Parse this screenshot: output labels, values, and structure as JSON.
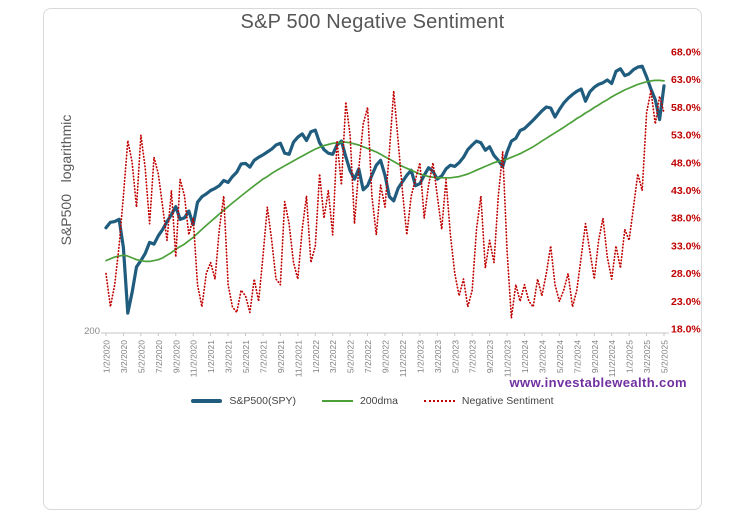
{
  "watermark": {
    "text": "www.investablewealth.com",
    "color": "#7030A0"
  },
  "chart_data": {
    "type": "line",
    "title": "S&P 500 Negative Sentiment",
    "sampling": "semi-monthly estimates, Jan 2020 - May 2025",
    "grid": "off",
    "left_axis": {
      "label": "S&P500   logarithmic",
      "scale": "logarithmic",
      "tick_labels": [
        "200"
      ],
      "color": "#8a8a8a"
    },
    "right_axis": {
      "tick_labels": [
        "68.0%",
        "63.0%",
        "58.0%",
        "53.0%",
        "48.0%",
        "43.0%",
        "38.0%",
        "33.0%",
        "28.0%",
        "23.0%",
        "18.0%"
      ],
      "min": 18,
      "max": 68,
      "step": 5,
      "color": "#C00000"
    },
    "x_axis": {
      "tick_labels": [
        "1/2/2020",
        "3/2/2020",
        "5/2/2020",
        "7/2/2020",
        "9/2/2020",
        "11/2/2020",
        "1/2/2021",
        "3/2/2021",
        "5/2/2021",
        "7/2/2021",
        "9/2/2021",
        "11/2/2021",
        "1/2/2022",
        "3/2/2022",
        "5/2/2022",
        "7/2/2022",
        "9/2/2022",
        "11/2/2022",
        "1/2/2023",
        "3/2/2023",
        "5/2/2023",
        "7/2/2023",
        "9/2/2023",
        "11/2/2023",
        "1/2/2024",
        "3/2/2024",
        "5/2/2024",
        "7/2/2024",
        "9/2/2024",
        "11/2/2024",
        "1/2/2025",
        "3/2/2025",
        "5/2/2025"
      ],
      "color": "#7F7F7F"
    },
    "legend": {
      "position": "bottom",
      "entries": [
        "S&P500(SPY)",
        "200dma",
        "Negative Sentiment"
      ]
    },
    "series": [
      {
        "name": "S&P500(SPY)",
        "axis": "left",
        "style": "solid",
        "color": "#1F5C7E",
        "values": [
          324,
          331,
          332,
          335,
          300,
          232,
          252,
          278,
          285,
          293,
          306,
          304,
          314,
          322,
          332,
          341,
          352,
          335,
          337,
          346,
          328,
          358,
          366,
          370,
          375,
          378,
          382,
          390,
          387,
          396,
          403,
          416,
          417,
          411,
          422,
          427,
          431,
          436,
          441,
          448,
          451,
          434,
          432,
          453,
          462,
          468,
          456,
          472,
          475,
          452,
          440,
          434,
          432,
          448,
          455,
          428,
          405,
          392,
          408,
          376,
          382,
          398,
          414,
          422,
          398,
          366,
          360,
          378,
          388,
          398,
          406,
          382,
          385,
          398,
          410,
          404,
          392,
          397,
          408,
          414,
          412,
          418,
          427,
          440,
          448,
          455,
          452,
          439,
          445,
          430,
          422,
          412,
          436,
          455,
          460,
          474,
          478,
          486,
          494,
          503,
          512,
          520,
          518,
          500,
          515,
          528,
          538,
          546,
          553,
          558,
          532,
          552,
          562,
          568,
          572,
          578,
          570,
          598,
          604,
          588,
          592,
          602,
          608,
          610,
          585,
          558,
          535,
          495,
          565
        ]
      },
      {
        "name": "200dma",
        "axis": "left",
        "style": "solid",
        "color": "#4CA03A",
        "values": [
          285,
          287,
          289,
          290,
          291,
          290,
          288,
          286,
          285,
          284,
          284,
          285,
          286,
          288,
          291,
          294,
          298,
          301,
          304,
          308,
          312,
          317,
          322,
          327,
          332,
          337,
          342,
          347,
          352,
          357,
          362,
          367,
          372,
          377,
          382,
          387,
          392,
          396,
          401,
          405,
          409,
          413,
          417,
          421,
          425,
          429,
          433,
          437,
          441,
          444,
          447,
          449,
          451,
          452,
          453,
          453,
          452,
          450,
          448,
          445,
          442,
          439,
          436,
          432,
          428,
          424,
          420,
          416,
          412,
          409,
          406,
          403,
          400,
          398,
          396,
          395,
          394,
          394,
          394,
          394,
          395,
          396,
          398,
          400,
          403,
          406,
          409,
          412,
          415,
          418,
          420,
          422,
          424,
          427,
          430,
          433,
          437,
          441,
          445,
          450,
          455,
          460,
          465,
          470,
          475,
          480,
          486,
          491,
          497,
          502,
          508,
          513,
          519,
          524,
          530,
          535,
          541,
          546,
          551,
          556,
          560,
          564,
          568,
          571,
          574,
          576,
          577,
          577,
          576
        ]
      },
      {
        "name": "Negative Sentiment",
        "axis": "right",
        "style": "dotted",
        "color": "#C00000",
        "values": [
          28,
          22,
          26,
          33,
          42,
          52,
          48,
          40,
          53,
          47,
          37,
          49,
          46,
          40,
          34,
          43,
          31,
          45,
          42,
          35,
          38,
          26,
          22,
          28,
          30,
          27,
          36,
          42,
          26,
          22,
          21,
          25,
          24,
          21,
          27,
          23,
          31,
          40,
          34,
          27,
          26,
          41,
          37,
          30,
          27,
          36,
          42,
          30,
          33,
          46,
          38,
          43,
          35,
          52,
          44,
          59,
          53,
          37,
          47,
          55,
          58,
          42,
          35,
          44,
          40,
          50,
          61,
          52,
          43,
          35,
          42,
          45,
          48,
          38,
          44,
          48,
          42,
          36,
          45,
          35,
          28,
          24,
          27,
          22,
          25,
          36,
          42,
          29,
          34,
          30,
          42,
          50,
          32,
          20,
          26,
          23,
          26,
          23,
          22,
          27,
          24,
          28,
          33,
          26,
          23,
          25,
          28,
          22,
          25,
          31,
          37,
          32,
          27,
          34,
          38,
          31,
          27,
          33,
          29,
          36,
          34,
          40,
          46,
          43,
          57,
          61,
          55,
          60,
          57
        ]
      }
    ]
  }
}
